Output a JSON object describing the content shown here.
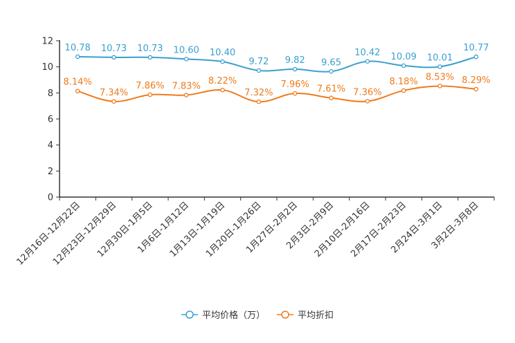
{
  "chart_data": {
    "type": "line",
    "title": "",
    "xlabel": "",
    "ylabel": "",
    "ylim": [
      0,
      12
    ],
    "yticks": [
      0,
      2,
      4,
      6,
      8,
      10,
      12
    ],
    "categories": [
      "12月16日-12月22日",
      "12月23日-12月29日",
      "12月30日-1月5日",
      "1月6日-1月12日",
      "1月13日-1月19日",
      "1月20日-1月26日",
      "1月27日-2月2日",
      "2月3日-2月9日",
      "2月10日-2月16日",
      "2月17日-2月23日",
      "2月24日-3月1日",
      "3月2日-3月8日"
    ],
    "series": [
      {
        "name": "平均价格（万）",
        "color": "#3a9fcf",
        "values": [
          10.78,
          10.73,
          10.73,
          10.6,
          10.4,
          9.72,
          9.82,
          9.65,
          10.42,
          10.09,
          10.01,
          10.77
        ],
        "labels": [
          "10.78",
          "10.73",
          "10.73",
          "10.60",
          "10.40",
          "9.72",
          "9.82",
          "9.65",
          "10.42",
          "10.09",
          "10.01",
          "10.77"
        ]
      },
      {
        "name": "平均折扣",
        "color": "#f07a1a",
        "values": [
          8.14,
          7.34,
          7.86,
          7.83,
          8.22,
          7.32,
          7.96,
          7.61,
          7.36,
          8.18,
          8.53,
          8.29
        ],
        "labels": [
          "8.14%",
          "7.34%",
          "7.86%",
          "7.83%",
          "8.22%",
          "7.32%",
          "7.96%",
          "7.61%",
          "7.36%",
          "8.18%",
          "8.53%",
          "8.29%"
        ]
      }
    ],
    "legend_position": "bottom-center",
    "grid": false
  }
}
